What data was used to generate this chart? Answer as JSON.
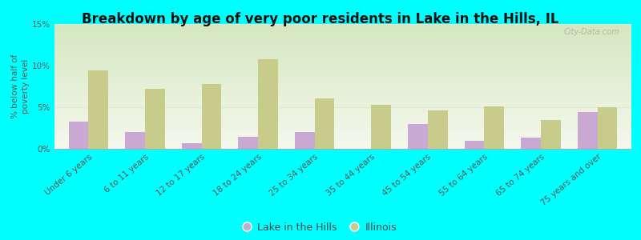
{
  "title": "Breakdown by age of very poor residents in Lake in the Hills, IL",
  "ylabel": "% below half of\npoverty level",
  "categories": [
    "Under 6 years",
    "6 to 11 years",
    "12 to 17 years",
    "18 to 24 years",
    "25 to 34 years",
    "35 to 44 years",
    "45 to 54 years",
    "55 to 64 years",
    "65 to 74 years",
    "75 years and over"
  ],
  "lake_values": [
    3.3,
    2.0,
    0.7,
    1.4,
    2.0,
    0.0,
    3.0,
    1.0,
    1.3,
    4.4
  ],
  "illinois_values": [
    9.4,
    7.2,
    7.8,
    10.8,
    6.1,
    5.3,
    4.6,
    5.1,
    3.5,
    5.0
  ],
  "lake_color": "#c9a8d4",
  "illinois_color": "#c8cc8a",
  "background_color": "#00ffff",
  "plot_bg_color": "#e8f0d8",
  "bar_width": 0.35,
  "ylim": [
    0,
    15
  ],
  "yticks": [
    0,
    5,
    10,
    15
  ],
  "ytick_labels": [
    "0%",
    "5%",
    "10%",
    "15%"
  ],
  "watermark": "City-Data.com",
  "legend_lake": "Lake in the Hills",
  "legend_illinois": "Illinois",
  "title_fontsize": 12,
  "axis_label_fontsize": 7.5,
  "tick_fontsize": 7.5,
  "grid_color": "#e0ead0"
}
